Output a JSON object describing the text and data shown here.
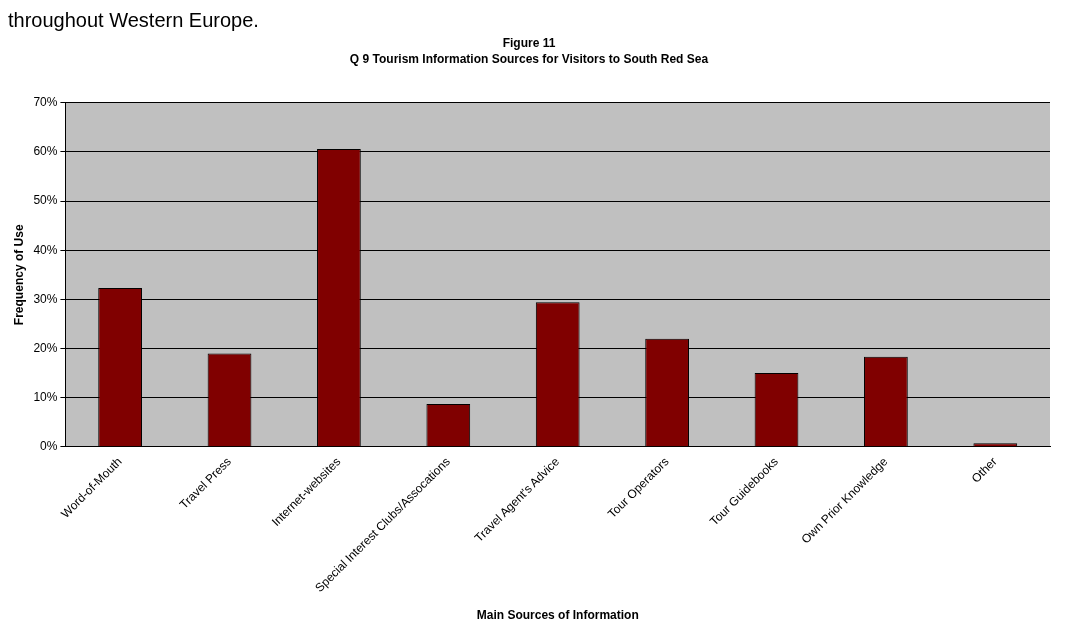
{
  "chart_data": {
    "type": "bar",
    "title": "Figure 11",
    "subtitle": "Q 9 Tourism Information Sources for Visitors to South Red Sea",
    "xlabel": "Main Sources of Information",
    "ylabel": "Frequency of Use",
    "annotations": [
      "throughout Western Europe."
    ],
    "categories": [
      "Word-of-Mouth",
      "Travel Press",
      "Internet-websites",
      "Special Interest Clubs/Assocations",
      "Travel Agent's Advice",
      "Tour Operators",
      "Tour Guidebooks",
      "Own Prior Knowledge",
      "Other"
    ],
    "values": [
      32.3,
      19.0,
      60.6,
      8.7,
      29.4,
      22.0,
      15.0,
      18.3,
      0.7
    ],
    "color": "#800000",
    "ylim": [
      0,
      70
    ],
    "yticks": [
      {
        "value": 0,
        "label": "0%"
      },
      {
        "value": 10,
        "label": "10%"
      },
      {
        "value": 20,
        "label": "20%"
      },
      {
        "value": 30,
        "label": "30%"
      },
      {
        "value": 40,
        "label": "40%"
      },
      {
        "value": 50,
        "label": "50%"
      },
      {
        "value": 60,
        "label": "60%"
      },
      {
        "value": 70,
        "label": "70%"
      }
    ],
    "grid": "y",
    "legend": false
  }
}
